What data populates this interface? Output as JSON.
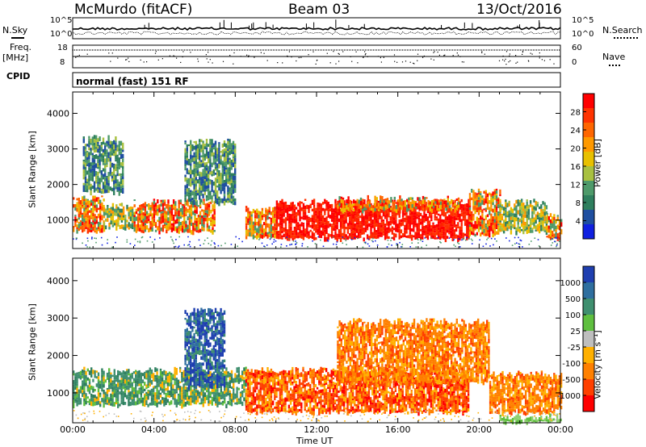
{
  "header": {
    "station": "McMurdo (fitACF)",
    "beam": "Beam 03",
    "date": "13/Oct/2016"
  },
  "top_panels": {
    "nsky_label": "N.Sky",
    "nsearch_label": "N.Search",
    "noise_ticks_left": [
      "10^5",
      "10^0"
    ],
    "noise_ticks_right": [
      "10^5",
      "10^0"
    ],
    "freq_label": "Freq.",
    "freq_unit": "[MHz]",
    "freq_ticks": [
      "18",
      "8"
    ],
    "nave_label": "Nave",
    "nave_ticks": [
      "60",
      "0"
    ],
    "cpid_label": "CPID",
    "cpid_text": "normal (fast) 151 RF"
  },
  "time_axis": {
    "label": "Time UT",
    "ticks": [
      "00:00",
      "04:00",
      "08:00",
      "12:00",
      "16:00",
      "20:00",
      "00:00"
    ]
  },
  "chart_data": [
    {
      "type": "heatmap",
      "panel": "power",
      "ylabel": "Slant Range [km]",
      "yticks": [
        1000,
        2000,
        3000,
        4000
      ],
      "ylim": [
        200,
        4600
      ],
      "xlim_hours": [
        0,
        24
      ],
      "colorbar": {
        "label": "Power [dB]",
        "ticks": [
          "28",
          "24",
          "20",
          "16",
          "12",
          "8",
          "4"
        ],
        "colors": [
          "#ff0000",
          "#ff3300",
          "#ff6600",
          "#ff9900",
          "#e8c000",
          "#a8c040",
          "#4e9a6a",
          "#2f7f5e",
          "#1f4fa0",
          "#1020e0"
        ]
      },
      "regions": [
        {
          "t0": 0.0,
          "t1": 1.5,
          "r0": 700,
          "r1": 1700,
          "level": "high"
        },
        {
          "t0": 1.5,
          "t1": 3.0,
          "r0": 800,
          "r1": 1500,
          "level": "mid"
        },
        {
          "t0": 3.0,
          "t1": 7.0,
          "r0": 700,
          "r1": 1600,
          "level": "high"
        },
        {
          "t0": 5.5,
          "t1": 8.0,
          "r0": 1500,
          "r1": 3300,
          "level": "low"
        },
        {
          "t0": 0.5,
          "t1": 2.5,
          "r0": 1800,
          "r1": 3400,
          "level": "low"
        },
        {
          "t0": 8.5,
          "t1": 10.0,
          "r0": 550,
          "r1": 1400,
          "level": "high"
        },
        {
          "t0": 10.0,
          "t1": 19.5,
          "r0": 500,
          "r1": 1600,
          "level": "max"
        },
        {
          "t0": 13.0,
          "t1": 19.0,
          "r0": 1300,
          "r1": 1700,
          "level": "high"
        },
        {
          "t0": 19.5,
          "t1": 21.0,
          "r0": 600,
          "r1": 1900,
          "level": "high"
        },
        {
          "t0": 21.0,
          "t1": 23.3,
          "r0": 700,
          "r1": 1600,
          "level": "mid"
        },
        {
          "t0": 23.3,
          "t1": 24.0,
          "r0": 500,
          "r1": 1200,
          "level": "high"
        }
      ]
    },
    {
      "type": "heatmap",
      "panel": "velocity",
      "ylabel": "Slant Range [km]",
      "yticks": [
        1000,
        2000,
        3000,
        4000
      ],
      "ylim": [
        200,
        4600
      ],
      "xlim_hours": [
        0,
        24
      ],
      "colorbar": {
        "label": "Velocity [m s⁻¹]",
        "ticks": [
          "1000",
          "500",
          "100",
          "25",
          "-25",
          "-100",
          "-500",
          "-1000"
        ],
        "colors": [
          "#1f3fb0",
          "#2f6f9f",
          "#3f8f6f",
          "#5fbf3f",
          "#bebebe",
          "#ffb000",
          "#ff8000",
          "#ff4000",
          "#ff0000"
        ]
      },
      "regions": [
        {
          "t0": 0.0,
          "t1": 8.5,
          "r0": 700,
          "r1": 1700,
          "level": "pos_low"
        },
        {
          "t0": 5.5,
          "t1": 7.5,
          "r0": 1200,
          "r1": 3300,
          "level": "pos_high"
        },
        {
          "t0": 8.5,
          "t1": 19.5,
          "r0": 500,
          "r1": 1700,
          "level": "neg_mid"
        },
        {
          "t0": 13.0,
          "t1": 20.5,
          "r0": 1300,
          "r1": 3000,
          "level": "neg_low"
        },
        {
          "t0": 20.5,
          "t1": 24.0,
          "r0": 500,
          "r1": 1600,
          "level": "neg_low"
        },
        {
          "t0": 21.0,
          "t1": 24.0,
          "r0": 250,
          "r1": 450,
          "level": "pos_green"
        }
      ]
    }
  ]
}
